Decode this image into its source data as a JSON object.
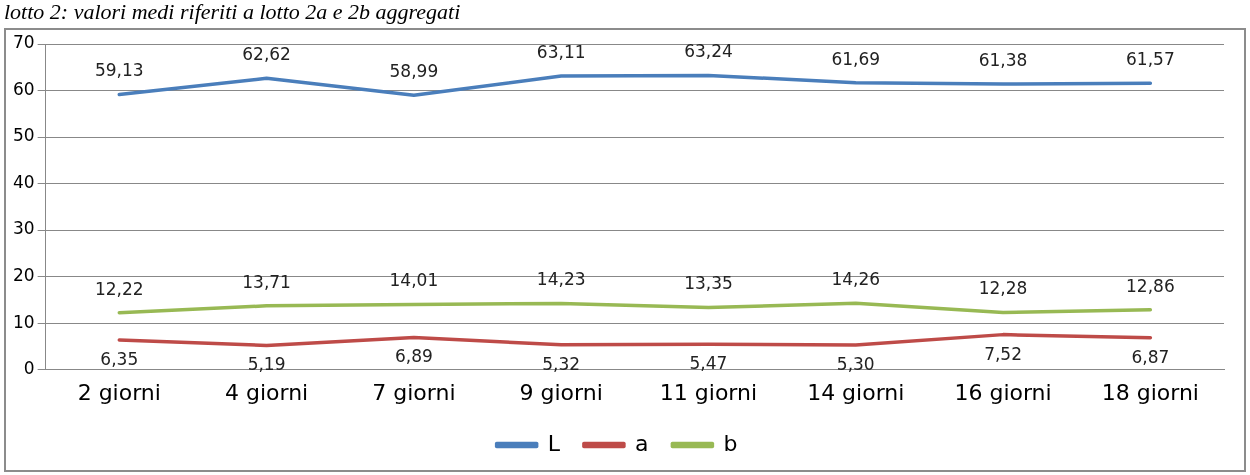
{
  "chart_data": {
    "type": "line",
    "title": "lotto 2: valori medi riferiti a lotto 2a e 2b aggregati",
    "categories": [
      "2 giorni",
      "4 giorni",
      "7 giorni",
      "9 giorni",
      "11 giorni",
      "14 giorni",
      "16 giorni",
      "18 giorni"
    ],
    "series": [
      {
        "name": "L",
        "color": "#4a7ebb",
        "values": [
          59.13,
          62.62,
          58.99,
          63.11,
          63.24,
          61.69,
          61.38,
          61.57
        ],
        "value_labels": [
          "59,13",
          "62,62",
          "58,99",
          "63,11",
          "63,24",
          "61,69",
          "61,38",
          "61,57"
        ]
      },
      {
        "name": "a",
        "color": "#be4b48",
        "values": [
          6.35,
          5.19,
          6.89,
          5.32,
          5.47,
          5.3,
          7.52,
          6.87
        ],
        "value_labels": [
          "6,35",
          "5,19",
          "6,89",
          "5,32",
          "5,47",
          "5,30",
          "7,52",
          "6,87"
        ]
      },
      {
        "name": "b",
        "color": "#98b954",
        "values": [
          12.22,
          13.71,
          14.01,
          14.23,
          13.35,
          14.26,
          12.28,
          12.86
        ],
        "value_labels": [
          "12,22",
          "13,71",
          "14,01",
          "14,23",
          "13,35",
          "14,26",
          "12,28",
          "12,86"
        ]
      }
    ],
    "ylim": [
      0,
      70
    ],
    "yticks": [
      0,
      10,
      20,
      30,
      40,
      50,
      60,
      70
    ],
    "grid": "y",
    "legend": "bottom",
    "marker": "none",
    "line_style": "solid"
  }
}
